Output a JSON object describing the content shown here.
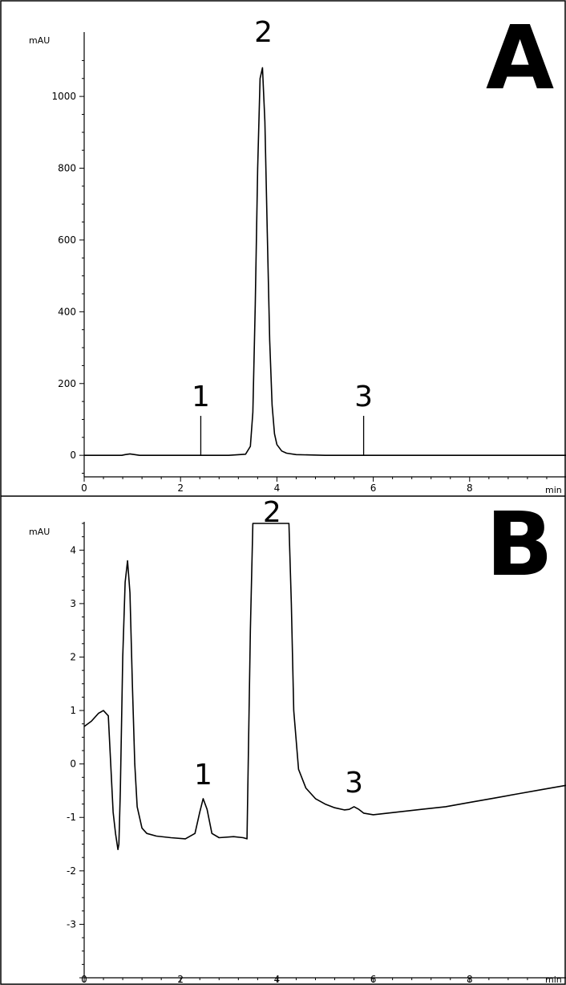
{
  "chart_data": [
    {
      "type": "line",
      "panel_label": "A",
      "ylabel": "mAU",
      "xlabel": "min",
      "xlim": [
        0,
        10
      ],
      "ylim": [
        -60,
        1130
      ],
      "x_ticks": [
        0,
        2,
        4,
        6,
        8
      ],
      "y_ticks": [
        0,
        200,
        400,
        600,
        800,
        1000
      ],
      "series": [
        {
          "x": [
            0,
            0.78,
            0.85,
            0.95,
            1.05,
            1.15,
            2.0,
            3.0,
            3.35,
            3.45,
            3.5,
            3.55,
            3.6,
            3.65,
            3.7,
            3.75,
            3.8,
            3.85,
            3.9,
            3.95,
            4.0,
            4.1,
            4.2,
            4.4,
            5.0,
            7.0,
            10
          ],
          "y": [
            0,
            0,
            2,
            4,
            2,
            0,
            0,
            0,
            3,
            25,
            120,
            420,
            800,
            1050,
            1080,
            930,
            620,
            320,
            140,
            60,
            30,
            12,
            6,
            2,
            0,
            0,
            0
          ]
        }
      ],
      "peaks": [
        {
          "label": "1",
          "x": 2.42,
          "y": 0,
          "marked": true,
          "top": 110
        },
        {
          "label": "2",
          "x": 3.72,
          "y": 1080,
          "marked": false
        },
        {
          "label": "3",
          "x": 5.8,
          "y": 0,
          "marked": true,
          "top": 110
        }
      ]
    },
    {
      "type": "line",
      "panel_label": "B",
      "ylabel": "mAU",
      "xlabel": "min",
      "xlim": [
        0,
        10
      ],
      "ylim": [
        -4.0,
        4.5
      ],
      "x_ticks": [
        0,
        2,
        4,
        6,
        8
      ],
      "y_ticks": [
        -3,
        -2,
        -1,
        0,
        1,
        2,
        3,
        4
      ],
      "series": [
        {
          "x": [
            0,
            0.15,
            0.3,
            0.4,
            0.5,
            0.55,
            0.6,
            0.65,
            0.7,
            0.72,
            0.75,
            0.8,
            0.85,
            0.9,
            0.95,
            1.0,
            1.05,
            1.1,
            1.2,
            1.3,
            1.5,
            1.8,
            2.1,
            2.3,
            2.4,
            2.47,
            2.55,
            2.65,
            2.8,
            3.1,
            3.3,
            3.38,
            3.45,
            3.5,
            3.55,
            4.25,
            4.3,
            4.35,
            4.45,
            4.6,
            4.8,
            5.0,
            5.2,
            5.4,
            5.5,
            5.6,
            5.7,
            5.8,
            6.0,
            6.5,
            7.0,
            7.5,
            8.0,
            8.5,
            9.0,
            9.5,
            10
          ],
          "y": [
            0.7,
            0.8,
            0.95,
            1.0,
            0.9,
            0.0,
            -0.9,
            -1.3,
            -1.6,
            -1.5,
            -0.5,
            2.0,
            3.4,
            3.8,
            3.2,
            1.5,
            0.0,
            -0.8,
            -1.2,
            -1.3,
            -1.35,
            -1.38,
            -1.4,
            -1.3,
            -0.9,
            -0.65,
            -0.85,
            -1.3,
            -1.38,
            -1.36,
            -1.38,
            -1.4,
            2.5,
            4.5,
            4.5,
            4.5,
            3.0,
            1.0,
            -0.1,
            -0.45,
            -0.65,
            -0.75,
            -0.82,
            -0.86,
            -0.85,
            -0.8,
            -0.85,
            -0.92,
            -0.95,
            -0.9,
            -0.85,
            -0.8,
            -0.72,
            -0.64,
            -0.56,
            -0.48,
            -0.4
          ]
        }
      ],
      "peaks": [
        {
          "label": "1",
          "x": 2.47,
          "y": -0.65,
          "marked": false
        },
        {
          "label": "2",
          "x": 3.9,
          "y": 4.5,
          "marked": false
        },
        {
          "label": "3",
          "x": 5.6,
          "y": -0.8,
          "marked": false
        }
      ]
    }
  ]
}
